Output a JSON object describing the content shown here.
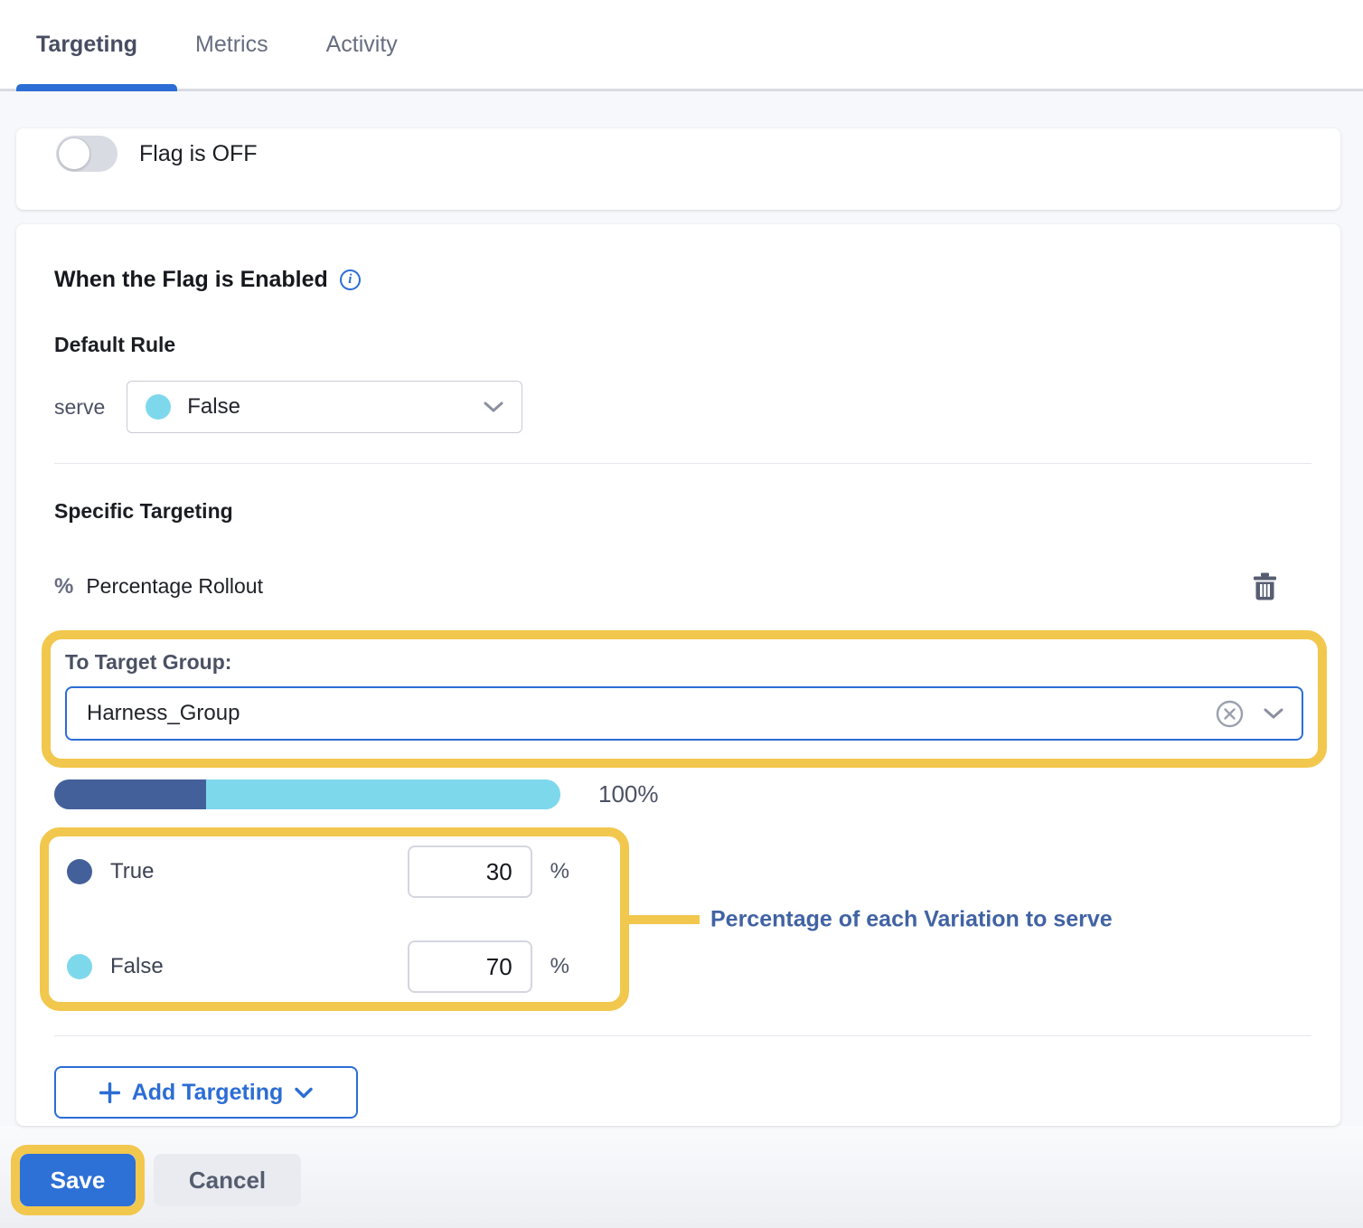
{
  "tabs": {
    "items": [
      {
        "label": "Targeting",
        "active": true
      },
      {
        "label": "Metrics",
        "active": false
      },
      {
        "label": "Activity",
        "active": false
      }
    ]
  },
  "flag": {
    "status_label": "Flag is OFF",
    "enabled": false
  },
  "targeting": {
    "enabled_section_title": "When the Flag is Enabled",
    "default_rule": {
      "heading": "Default Rule",
      "serve_label": "serve",
      "selected_variation": "False"
    },
    "specific_heading": "Specific Targeting",
    "rollout": {
      "icon_glyph": "%",
      "label": "Percentage Rollout",
      "target_group_label": "To Target Group:",
      "target_group_value": "Harness_Group",
      "total_label": "100%",
      "variations": [
        {
          "name": "True",
          "weight": 30,
          "unit": "%",
          "color": "#44609a"
        },
        {
          "name": "False",
          "weight": 70,
          "unit": "%",
          "color": "#7ed8ec"
        }
      ]
    },
    "annotation": "Percentage of each Variation to serve",
    "add_targeting_label": "Add Targeting"
  },
  "footer": {
    "save_label": "Save",
    "cancel_label": "Cancel"
  },
  "colors": {
    "accent_blue": "#2c6dd5",
    "highlight_yellow": "#f2c74d",
    "variation_true": "#44609a",
    "variation_false": "#7ed8ec",
    "annotation_blue": "#4163a4"
  }
}
